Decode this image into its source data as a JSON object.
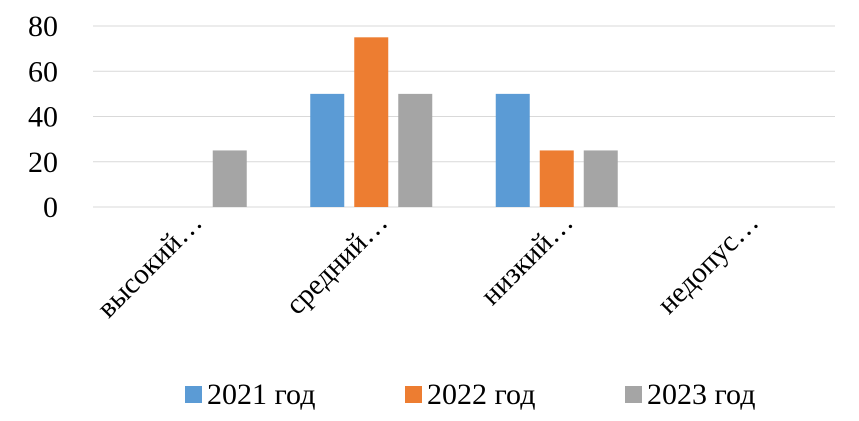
{
  "chart_data": {
    "type": "bar",
    "title": "",
    "xlabel": "",
    "ylabel": "",
    "categories": [
      "высокий…",
      "средний…",
      "низкий…",
      "недопус…"
    ],
    "series": [
      {
        "name": "2021 год",
        "color": "#5B9BD5",
        "values": [
          0,
          50,
          50,
          0
        ]
      },
      {
        "name": "2022 год",
        "color": "#ED7D31",
        "values": [
          0,
          75,
          25,
          0
        ]
      },
      {
        "name": "2023 год",
        "color": "#A5A5A5",
        "values": [
          25,
          50,
          25,
          0
        ]
      }
    ],
    "ylim": [
      0,
      80
    ],
    "yticks": [
      "0",
      "20",
      "40",
      "60",
      "80"
    ],
    "grid": true,
    "legend": "bottom"
  }
}
